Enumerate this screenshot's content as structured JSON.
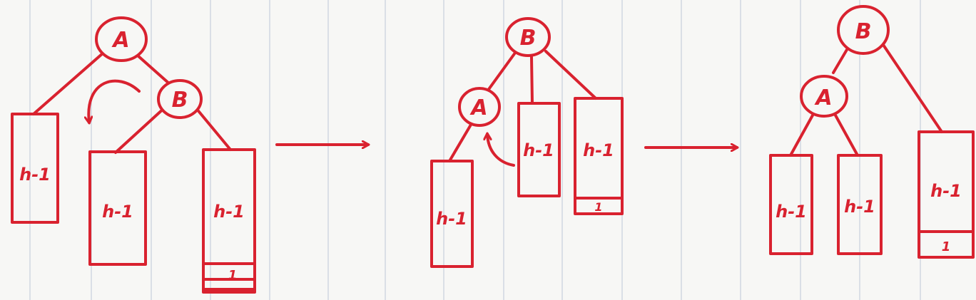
{
  "colors": {
    "ink": "#d9222f",
    "paper": "#f7f7f5",
    "rule_line": "#9fb0c8"
  },
  "labels": {
    "node_a": "A",
    "node_b": "B",
    "subtree_height": "h-1",
    "extra_level": "1"
  }
}
